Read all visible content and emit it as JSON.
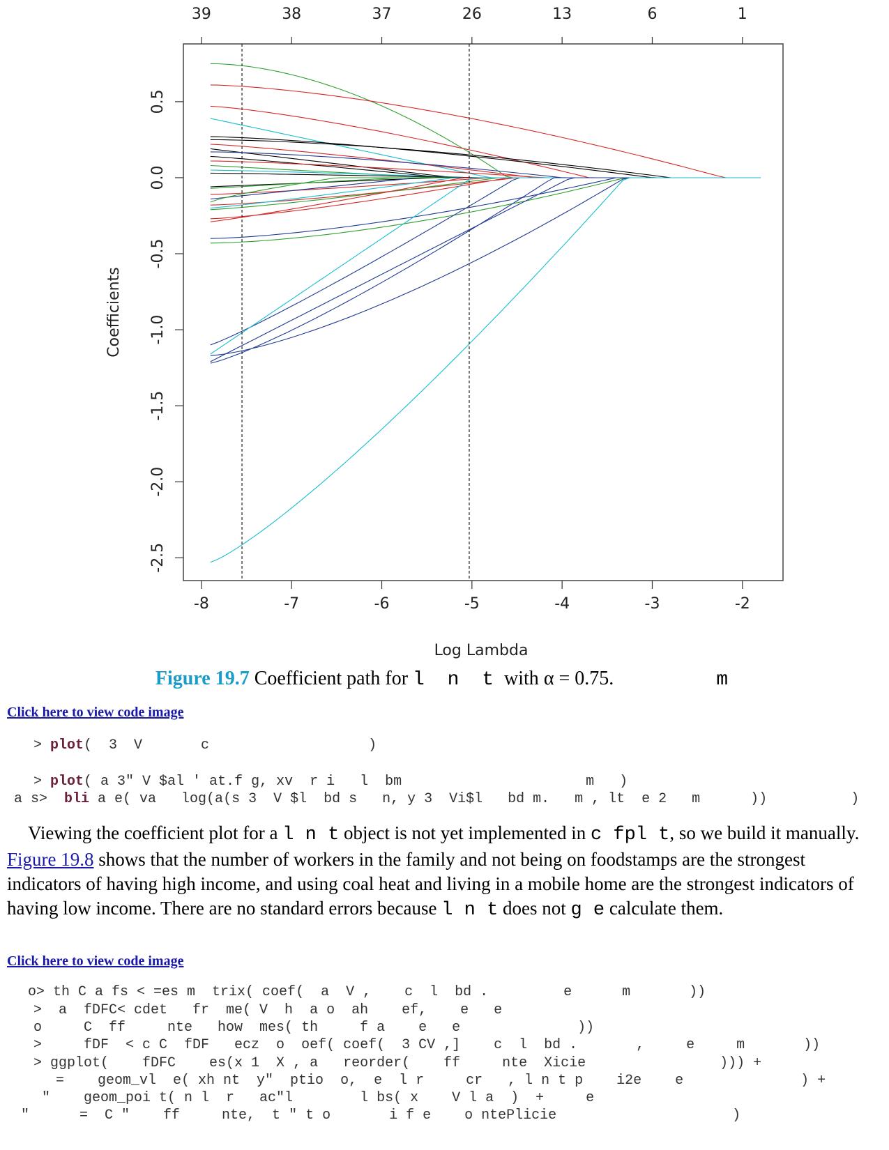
{
  "chart_data": {
    "type": "line",
    "xlabel": "Log Lambda",
    "ylabel": "Coefficients",
    "xlim": [
      -8.2,
      -1.55
    ],
    "ylim": [
      -2.65,
      0.88
    ],
    "x_ticks": [
      "-8",
      "-7",
      "-6",
      "-5",
      "-4",
      "-3",
      "-2"
    ],
    "y_ticks": [
      "0.5",
      "0.0",
      "-0.5",
      "-1.0",
      "-1.5",
      "-2.0",
      "-2.5"
    ],
    "top_ticks": [
      "39",
      "38",
      "37",
      "26",
      "13",
      "6",
      "1"
    ],
    "top_tick_positions": [
      -8,
      -7,
      -6,
      -5,
      -4,
      -3,
      -2
    ],
    "vlines": [
      -7.55,
      -5.03
    ],
    "series": [
      {
        "start": 0.75,
        "zero_at": -4.6,
        "shape": 1.8,
        "color": "#2ca02c"
      },
      {
        "start": 0.61,
        "zero_at": -2.2,
        "shape": 1.5,
        "color": "#d62728"
      },
      {
        "start": 0.47,
        "zero_at": -3.7,
        "shape": 1.3,
        "color": "#d62728"
      },
      {
        "start": 0.39,
        "zero_at": -4.8,
        "shape": 1.0,
        "color": "#17becf"
      },
      {
        "start": 0.27,
        "zero_at": -3.0,
        "shape": 1.4,
        "color": "#000000"
      },
      {
        "start": 0.25,
        "zero_at": -2.8,
        "shape": 1.6,
        "color": "#000000"
      },
      {
        "start": 0.22,
        "zero_at": -4.3,
        "shape": 1.2,
        "color": "#d62728"
      },
      {
        "start": 0.19,
        "zero_at": -5.2,
        "shape": 1.0,
        "color": "#000000"
      },
      {
        "start": 0.17,
        "zero_at": -4.0,
        "shape": 1.5,
        "color": "#1f3a93"
      },
      {
        "start": 0.14,
        "zero_at": -5.3,
        "shape": 1.1,
        "color": "#000000"
      },
      {
        "start": 0.11,
        "zero_at": -4.2,
        "shape": 1.3,
        "color": "#d62728"
      },
      {
        "start": 0.08,
        "zero_at": -5.4,
        "shape": 1.0,
        "color": "#2ca02c"
      },
      {
        "start": 0.05,
        "zero_at": -5.0,
        "shape": 1.2,
        "color": "#17becf"
      },
      {
        "start": 0.03,
        "zero_at": -4.9,
        "shape": 1.1,
        "color": "#000000"
      },
      {
        "start": -0.06,
        "zero_at": -5.4,
        "shape": 1.0,
        "color": "#000000"
      },
      {
        "start": -0.07,
        "zero_at": -5.8,
        "shape": 1.0,
        "color": "#2ca02c"
      },
      {
        "start": -0.11,
        "zero_at": -4.8,
        "shape": 1.2,
        "color": "#d62728"
      },
      {
        "start": -0.14,
        "zero_at": -5.6,
        "shape": 1.0,
        "color": "#1f3a93"
      },
      {
        "start": -0.16,
        "zero_at": -6.5,
        "shape": 0.8,
        "color": "#2ca02c"
      },
      {
        "start": -0.18,
        "zero_at": -4.5,
        "shape": 1.3,
        "color": "#d62728"
      },
      {
        "start": -0.2,
        "zero_at": -5.2,
        "shape": 1.1,
        "color": "#17becf"
      },
      {
        "start": -0.21,
        "zero_at": -4.7,
        "shape": 1.2,
        "color": "#2ca02c"
      },
      {
        "start": -0.27,
        "zero_at": -4.6,
        "shape": 1.3,
        "color": "#d62728"
      },
      {
        "start": -0.29,
        "zero_at": -5.1,
        "shape": 1.1,
        "color": "#d62728"
      },
      {
        "start": -0.4,
        "zero_at": -3.4,
        "shape": 1.5,
        "color": "#1f3a93"
      },
      {
        "start": -0.43,
        "zero_at": -3.3,
        "shape": 1.6,
        "color": "#2ca02c"
      },
      {
        "start": -1.1,
        "zero_at": -4.5,
        "shape": 1.1,
        "color": "#1f3a93"
      },
      {
        "start": -1.16,
        "zero_at": -5.0,
        "shape": 1.0,
        "color": "#17becf"
      },
      {
        "start": -1.17,
        "zero_at": -3.3,
        "shape": 1.4,
        "color": "#1f3a93"
      },
      {
        "start": -1.22,
        "zero_at": -4.1,
        "shape": 1.2,
        "color": "#1f3a93"
      },
      {
        "start": -1.21,
        "zero_at": -3.9,
        "shape": 1.0,
        "color": "#1f3a93"
      },
      {
        "start": -2.53,
        "zero_at": -3.3,
        "shape": 1.2,
        "color": "#17becf"
      }
    ]
  },
  "caption": {
    "figure_number": "Figure 19.7",
    "text_before": " Coefficient path for ",
    "code_word": "l n t",
    "text_after": " with ",
    "alpha_text": "α = 0.75.",
    "trailing": "m"
  },
  "link1": "Click here to view code image",
  "code_block1": [
    {
      "prefix": "> ",
      "fn": "plot",
      "rest": "(  3  V       c                   )"
    },
    {
      "prefix": "> ",
      "fn": "plot",
      "rest": "( a 3\" V $al ' at.f g, xv  r i   l  bm                      m   )"
    },
    {
      "prefix": "",
      "fn": "bli",
      "rest": " a e( va   log(a(s 3  V $l  bd s   n, y 3  Vi$l   bd m.   m , lt  e 2   m      ))          )"
    }
  ],
  "para1": {
    "t1": "Viewing the coefficient plot for a ",
    "c1": "l n t",
    "t2": " object is not yet implemented in ",
    "c2": "c fpl t",
    "t3": ", so we build it manually. ",
    "link": "Figure 19.8",
    "t4": " shows that the number of workers in the family and not being on foodstamps are the strongest indicators of having high income, and using coal heat and living in a mobile home are the strongest indicators of having low income. There are no standard errors because ",
    "c3": "l n t",
    "t5": " does not ",
    "c4": "g e",
    "t6": " calculate them."
  },
  "link2": "Click here to view code image",
  "code_block2": [
    "o> th C a fs < =es m  trix( coef(  a  V ,    c  l  bd .         e      m       ))",
    ">  a  fDFC< cdet   fr  me( V  h  a o  ah    ef,    e   e",
    "o     C  ff     nte   how  mes( th     f a    e   e              ))",
    ">     fDF  < c C  fDF   ecz  o  oef( coef(  3 CV ,]    c  l  bd .       ,     e     m       ))",
    "> ggplot(    fDFC    es(x 1  X , a   reorder(    ff     nte  Xicie                ))) +",
    "=    geom_vl  e( xh nt  y\"  ptio  o,  e  l r     cr   , l n t p    i2e    e              ) +",
    "\"    geom_poi t( n l  r   ac\"l        l bs( x    V l a  )  +     e",
    "\"      =  C \"    ff     nte,  t \" t o       i f e    o ntePlicie                     )"
  ]
}
